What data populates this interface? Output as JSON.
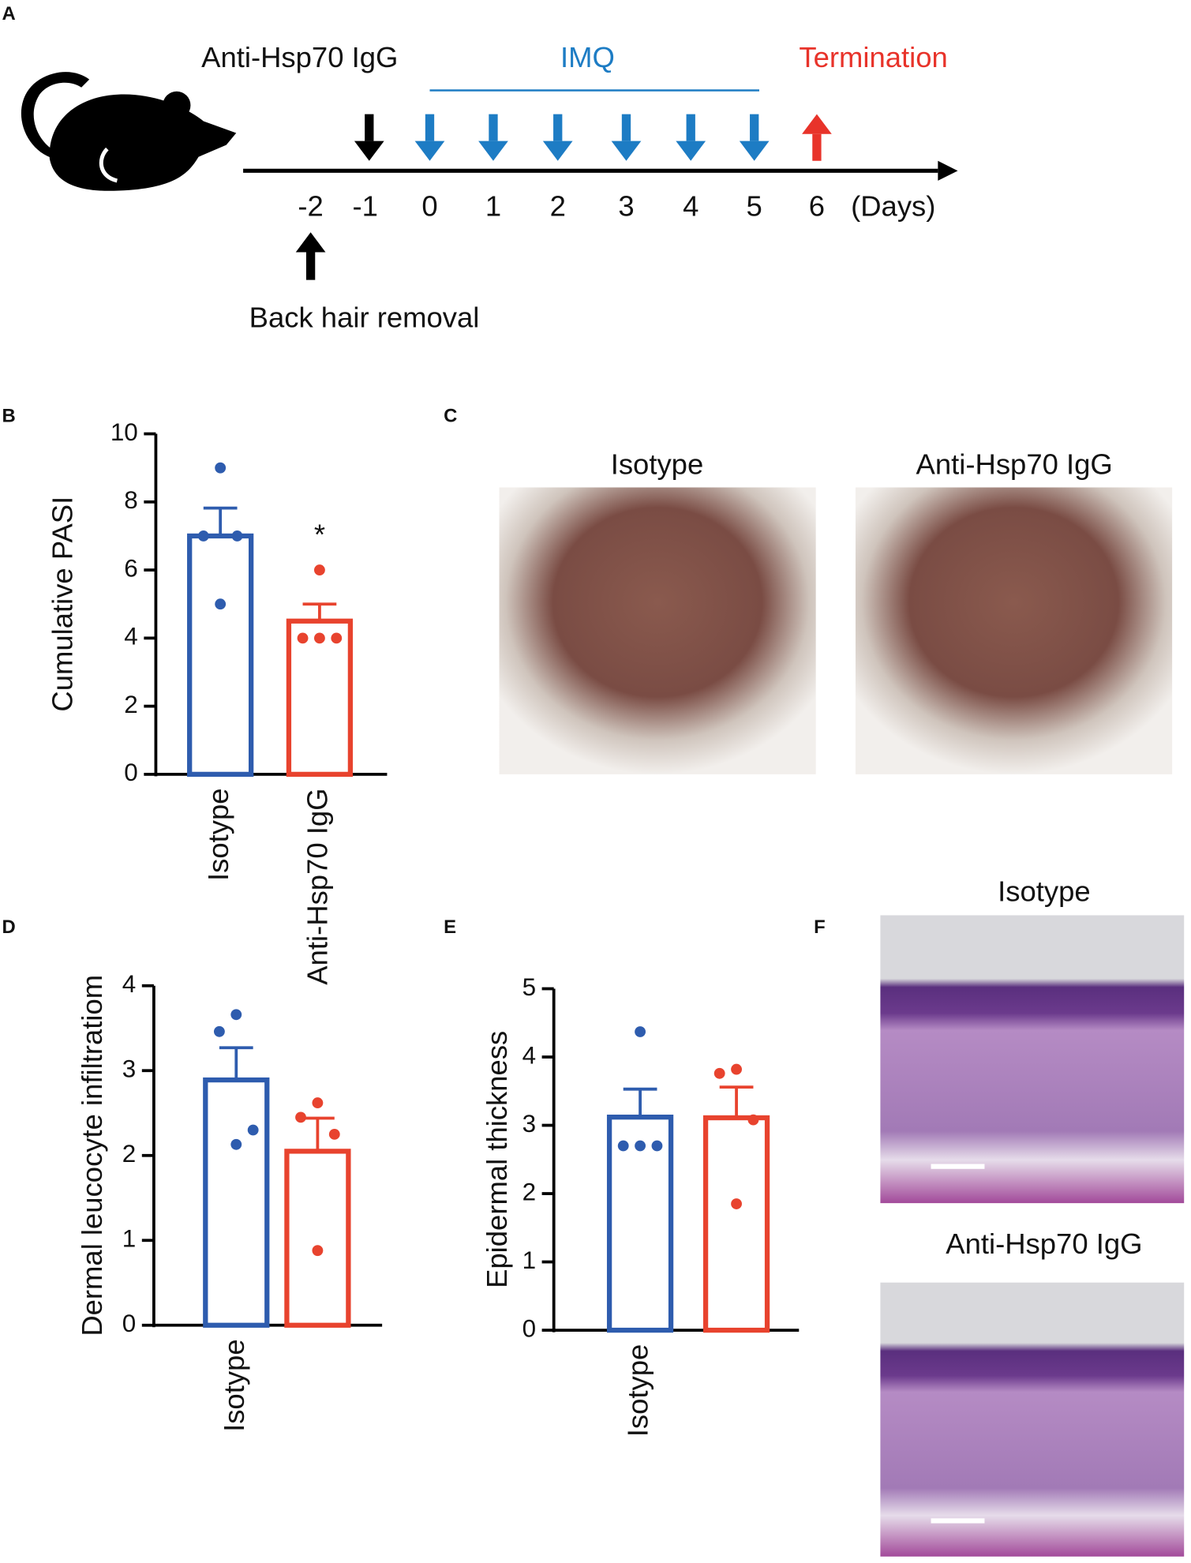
{
  "panels": [
    "A",
    "B",
    "C",
    "D",
    "E",
    "F"
  ],
  "timeline": {
    "treatment": "Anti-Hsp70 IgG",
    "imq": "IMQ",
    "termination": "Termination",
    "days": [
      "-2",
      "-1",
      "0",
      "1",
      "2",
      "3",
      "4",
      "5",
      "6"
    ],
    "unit": "(Days)",
    "hair_removal": "Back hair removal"
  },
  "chart_data": [
    {
      "type": "bar",
      "y_label": "Cumulative PASI",
      "categories": [
        "Isotype",
        "Anti-Hsp70 IgG"
      ],
      "values": [
        7,
        4.5
      ],
      "errors": [
        0.82,
        0.5
      ],
      "colors": [
        "#2e5cae",
        "#e8432e"
      ],
      "points": [
        [
          9,
          7,
          7,
          5
        ],
        [
          6,
          4,
          4,
          4
        ]
      ],
      "annotation": "*",
      "ylim": [
        0,
        10
      ],
      "yticks": [
        0,
        2,
        4,
        6,
        8,
        10
      ]
    },
    {
      "type": "bar",
      "y_label": "Dermal leucocyte infiltratiom",
      "categories": [
        "Isotype",
        null
      ],
      "values": [
        2.89,
        2.05
      ],
      "errors": [
        0.38,
        0.39
      ],
      "colors": [
        "#2e5cae",
        "#e8432e"
      ],
      "points": [
        [
          3.66,
          3.46,
          2.3,
          2.13
        ],
        [
          2.62,
          2.45,
          2.25,
          0.88
        ]
      ],
      "ylim": [
        0,
        4
      ],
      "yticks": [
        0,
        1,
        2,
        3,
        4
      ]
    },
    {
      "type": "bar",
      "y_label": "Epidermal thickness",
      "categories": [
        "Isotype",
        null
      ],
      "values": [
        3.12,
        3.11
      ],
      "errors": [
        0.41,
        0.45
      ],
      "colors": [
        "#2e5cae",
        "#e8432e"
      ],
      "points": [
        [
          4.37,
          2.7,
          2.7,
          2.7
        ],
        [
          3.82,
          3.76,
          3.08,
          1.85
        ]
      ],
      "ylim": [
        0,
        5
      ],
      "yticks": [
        0,
        1,
        2,
        3,
        4,
        5
      ]
    }
  ],
  "photos": {
    "C": {
      "labels": [
        "Isotype",
        "Anti-Hsp70 IgG"
      ]
    },
    "F": {
      "labels": [
        "Isotype",
        "Anti-Hsp70 IgG"
      ]
    }
  }
}
